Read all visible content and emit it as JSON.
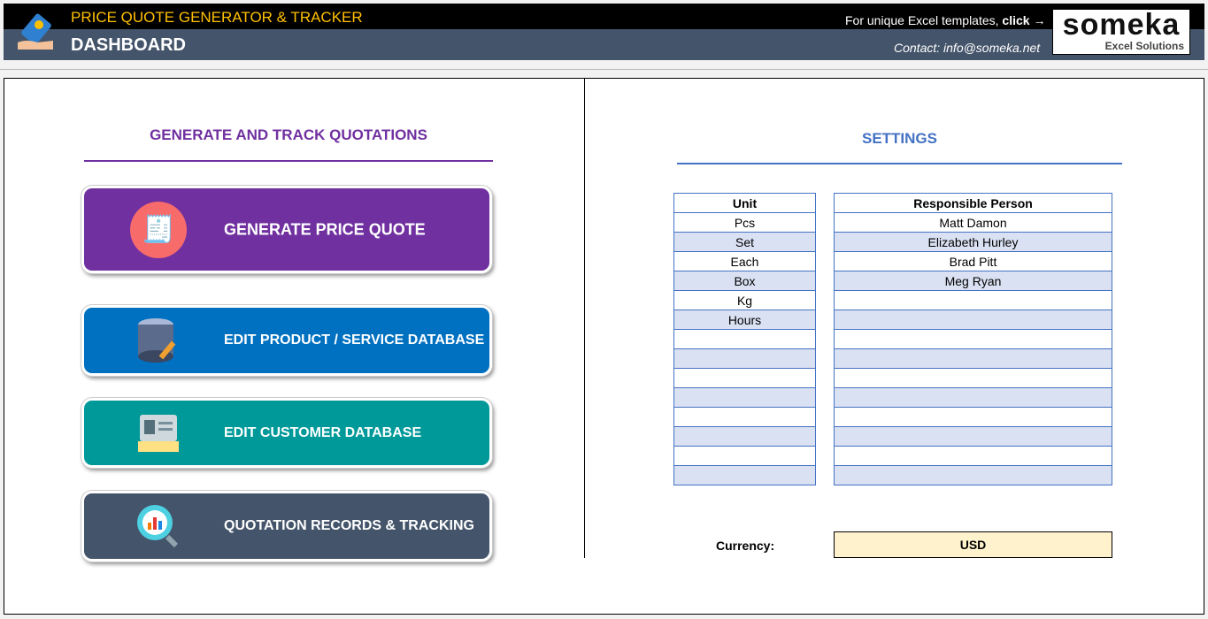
{
  "header": {
    "app_title": "PRICE QUOTE GENERATOR & TRACKER",
    "page_title": "DASHBOARD",
    "promo_text": "For unique Excel templates, ",
    "promo_click": "click →",
    "contact": "Contact: info@someka.net",
    "logo_name": "someka",
    "logo_tagline": "Excel Solutions"
  },
  "left": {
    "title": "GENERATE AND TRACK QUOTATIONS",
    "buttons": [
      {
        "label": "GENERATE PRICE QUOTE",
        "color": "#7030a0",
        "icon": "receipt-calculator-icon"
      },
      {
        "label": "EDIT PRODUCT / SERVICE DATABASE",
        "color": "#0070c0",
        "icon": "database-edit-icon"
      },
      {
        "label": "EDIT CUSTOMER DATABASE",
        "color": "#009999",
        "icon": "id-card-icon"
      },
      {
        "label": "QUOTATION RECORDS & TRACKING",
        "color": "#44546a",
        "icon": "magnifier-chart-icon"
      }
    ]
  },
  "settings": {
    "title": "SETTINGS",
    "unit_header": "Unit",
    "units": [
      "Pcs",
      "Set",
      "Each",
      "Box",
      "Kg",
      "Hours",
      "",
      "",
      "",
      "",
      "",
      "",
      "",
      ""
    ],
    "person_header": "Responsible Person",
    "persons": [
      "Matt Damon",
      "Elizabeth Hurley",
      "Brad Pitt",
      "Meg Ryan",
      "",
      "",
      "",
      "",
      "",
      "",
      "",
      "",
      "",
      ""
    ],
    "currency_label": "Currency:",
    "currency": "USD"
  }
}
